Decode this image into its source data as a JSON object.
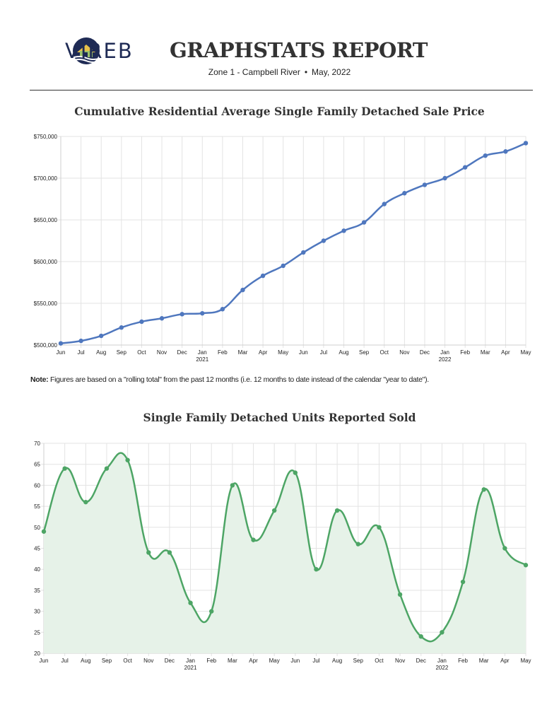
{
  "header": {
    "logo_text": "VIREB",
    "title": "GRAPHSTATS REPORT",
    "zone": "Zone 1 - Campbell River",
    "separator": "•",
    "period": "May, 2022"
  },
  "note": {
    "label": "Note:",
    "text": " Figures are based on a \"rolling total\" from the past 12 months (i.e. 12 months to date instead of the calendar \"year to date\")."
  },
  "colors": {
    "price_line": "#4f77be",
    "units_line": "#4da565",
    "units_fill": "#e6f2e8",
    "grid": "#e3e3e3"
  },
  "chart_data": [
    {
      "type": "line",
      "title": "Cumulative Residential Average Single Family Detached Sale Price",
      "categories": [
        "Jun",
        "Jul",
        "Aug",
        "Sep",
        "Oct",
        "Nov",
        "Dec",
        "Jan",
        "Feb",
        "Mar",
        "Apr",
        "May",
        "Jun",
        "Jul",
        "Aug",
        "Sep",
        "Oct",
        "Nov",
        "Dec",
        "Jan",
        "Feb",
        "Mar",
        "Apr",
        "May"
      ],
      "year_labels": [
        {
          "index": 7,
          "label": "2021"
        },
        {
          "index": 19,
          "label": "2022"
        }
      ],
      "values": [
        502000,
        505000,
        511000,
        521000,
        528000,
        532000,
        537000,
        538000,
        543000,
        566000,
        583000,
        595000,
        611000,
        625000,
        637000,
        647000,
        669000,
        682000,
        692000,
        700000,
        713000,
        727000,
        732000,
        742000
      ],
      "ylim": [
        500000,
        750000
      ],
      "yticks": [
        500000,
        550000,
        600000,
        650000,
        700000,
        750000
      ],
      "ytick_labels": [
        "$500,000",
        "$550,000",
        "$600,000",
        "$650,000",
        "$700,000",
        "$750,000"
      ],
      "xlabel": "",
      "ylabel": ""
    },
    {
      "type": "area",
      "title": "Single Family Detached Units Reported Sold",
      "categories": [
        "Jun",
        "Jul",
        "Aug",
        "Sep",
        "Oct",
        "Nov",
        "Dec",
        "Jan",
        "Feb",
        "Mar",
        "Apr",
        "May",
        "Jun",
        "Jul",
        "Aug",
        "Sep",
        "Oct",
        "Nov",
        "Dec",
        "Jan",
        "Feb",
        "Mar",
        "Apr",
        "May"
      ],
      "year_labels": [
        {
          "index": 7,
          "label": "2021"
        },
        {
          "index": 19,
          "label": "2022"
        }
      ],
      "values": [
        49,
        64,
        56,
        64,
        66,
        44,
        44,
        32,
        30,
        60,
        47,
        54,
        63,
        40,
        54,
        46,
        50,
        34,
        24,
        25,
        37,
        59,
        45,
        41
      ],
      "ylim": [
        20,
        70
      ],
      "yticks": [
        20,
        25,
        30,
        35,
        40,
        45,
        50,
        55,
        60,
        65,
        70
      ],
      "ytick_labels": [
        "20",
        "25",
        "30",
        "35",
        "40",
        "45",
        "50",
        "55",
        "60",
        "65",
        "70"
      ],
      "xlabel": "",
      "ylabel": ""
    }
  ]
}
